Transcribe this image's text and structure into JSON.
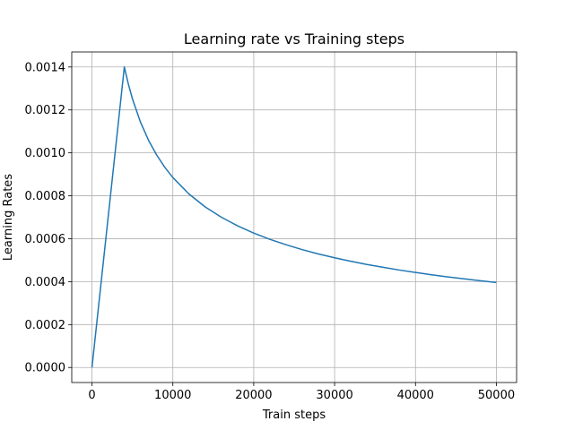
{
  "chart_data": {
    "type": "line",
    "title": "Learning rate vs Training steps",
    "xlabel": "Train steps",
    "ylabel": "Learning Rates",
    "xlim": [
      -2500,
      52500
    ],
    "ylim": [
      -7e-05,
      0.00147
    ],
    "xticks": [
      0,
      10000,
      20000,
      30000,
      40000,
      50000
    ],
    "xtick_labels": [
      "0",
      "10000",
      "20000",
      "30000",
      "40000",
      "50000"
    ],
    "yticks": [
      0.0,
      0.0002,
      0.0004,
      0.0006,
      0.0008,
      0.001,
      0.0012,
      0.0014
    ],
    "ytick_labels": [
      "0.0000",
      "0.0002",
      "0.0004",
      "0.0006",
      "0.0008",
      "0.0010",
      "0.0012",
      "0.0014"
    ],
    "grid": true,
    "colors": {
      "series": "#1f77b4"
    },
    "series": [
      {
        "x": [
          0,
          4000,
          4500,
          5000,
          6000,
          7000,
          8000,
          9000,
          10000,
          12000,
          14000,
          16000,
          18000,
          20000,
          22000,
          24000,
          26000,
          28000,
          30000,
          32000,
          34000,
          36000,
          38000,
          40000,
          42000,
          44000,
          46000,
          48000,
          50000
        ],
        "y": [
          0.0,
          0.0014,
          0.00132,
          0.001252,
          0.001143,
          0.001058,
          0.00099,
          0.000933,
          0.000885,
          0.000808,
          0.000748,
          0.0007,
          0.00066,
          0.000626,
          0.000597,
          0.000572,
          0.000549,
          0.000529,
          0.000511,
          0.000495,
          0.00048,
          0.000467,
          0.000454,
          0.000443,
          0.000432,
          0.000422,
          0.000413,
          0.000404,
          0.000396
        ]
      }
    ]
  }
}
